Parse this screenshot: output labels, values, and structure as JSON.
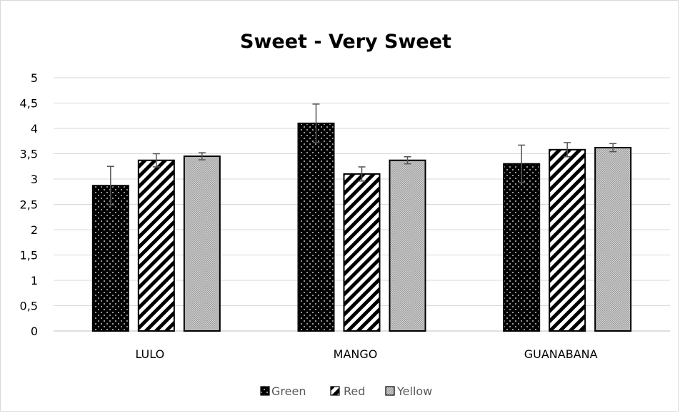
{
  "chart_data": {
    "type": "bar",
    "title": "Sweet - Very Sweet",
    "xlabel": "",
    "ylabel": "",
    "categories": [
      "LULO",
      "MANGO",
      "GUANABANA"
    ],
    "series": [
      {
        "name": "Green",
        "values": [
          2.87,
          4.1,
          3.3
        ],
        "error": [
          0.38,
          0.38,
          0.37
        ],
        "pattern": "dots",
        "color": "#000000"
      },
      {
        "name": "Red",
        "values": [
          3.37,
          3.1,
          3.58
        ],
        "error": [
          0.13,
          0.14,
          0.14
        ],
        "pattern": "stripes",
        "color": "#000000"
      },
      {
        "name": "Yellow",
        "values": [
          3.45,
          3.37,
          3.62
        ],
        "error": [
          0.07,
          0.07,
          0.08
        ],
        "pattern": "fine",
        "color": "#bfbfbf"
      }
    ],
    "ylim": [
      0,
      5
    ],
    "yticks": [
      "0",
      "0,5",
      "1",
      "1,5",
      "2",
      "2,5",
      "3",
      "3,5",
      "4",
      "4,5",
      "5"
    ],
    "grid": true,
    "legend_position": "bottom",
    "colors": {
      "grid": "#d9d9d9",
      "axis": "#bfbfbf",
      "bar_outline": "#000000"
    }
  }
}
